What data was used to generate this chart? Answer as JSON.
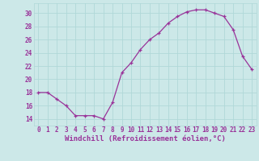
{
  "x": [
    0,
    1,
    2,
    3,
    4,
    5,
    6,
    7,
    8,
    9,
    10,
    11,
    12,
    13,
    14,
    15,
    16,
    17,
    18,
    19,
    20,
    21,
    22,
    23
  ],
  "y": [
    18,
    18,
    17,
    16,
    14.5,
    14.5,
    14.5,
    14,
    16.5,
    21,
    22.5,
    24.5,
    26,
    27,
    28.5,
    29.5,
    30.2,
    30.5,
    30.5,
    30,
    29.5,
    27.5,
    23.5,
    21.5
  ],
  "line_color": "#993399",
  "marker": "+",
  "bg_color": "#cce8e8",
  "grid_color": "#b0d8d8",
  "xlabel": "Windchill (Refroidissement éolien,°C)",
  "ylabel_ticks": [
    14,
    16,
    18,
    20,
    22,
    24,
    26,
    28,
    30
  ],
  "xlim": [
    -0.5,
    23.5
  ],
  "ylim": [
    13.0,
    31.5
  ],
  "xlabel_color": "#993399",
  "tick_color": "#993399",
  "font_name": "monospace",
  "xlabel_fontsize": 6.5,
  "tick_fontsize": 5.5
}
